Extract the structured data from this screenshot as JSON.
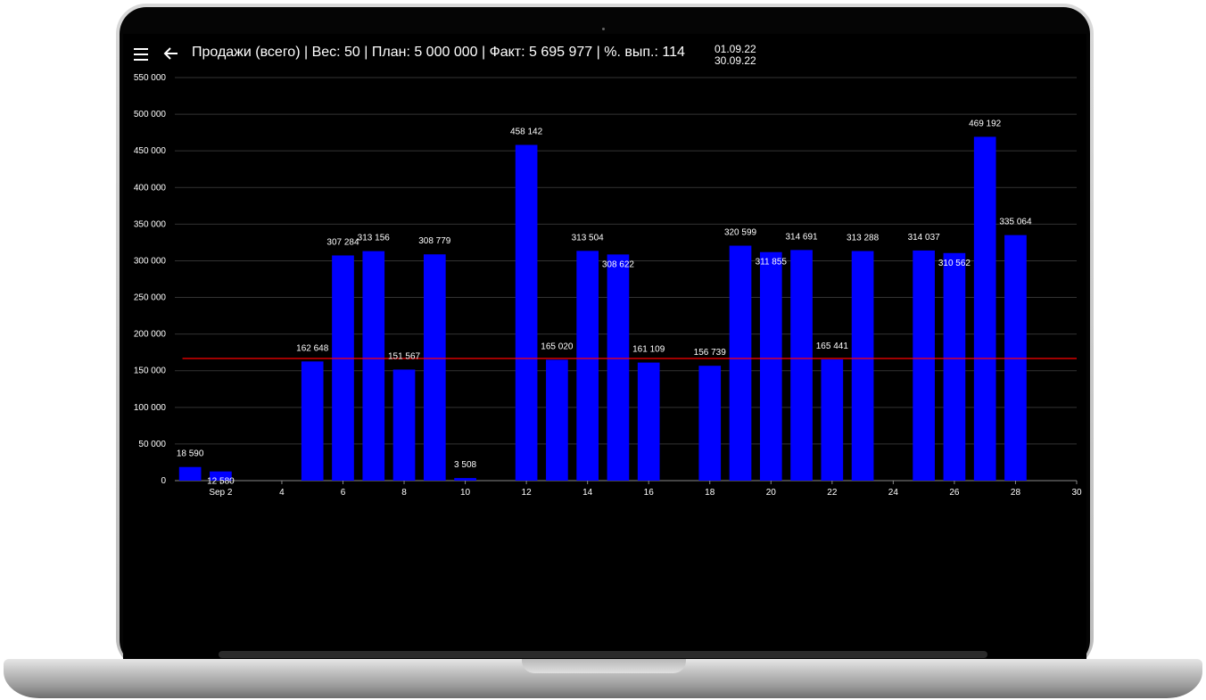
{
  "header": {
    "title": "Продажи (всего) | Вес: 50 | План: 5 000 000 | Факт: 5 695 977 | %. вып.: 114",
    "date_from": "01.09.22",
    "date_to": "30.09.22"
  },
  "icons": {
    "menu": "menu-icon",
    "back": "arrow-left-icon"
  },
  "colors": {
    "bar": "#0000ff",
    "plan_line": "#ff0000",
    "grid": "#333333",
    "background": "#000000",
    "text": "#ffffff"
  },
  "chart_data": {
    "type": "bar",
    "x": [
      1,
      2,
      5,
      6,
      7,
      8,
      9,
      10,
      12,
      13,
      14,
      15,
      16,
      18,
      19,
      20,
      21,
      22,
      23,
      25,
      26,
      27,
      28
    ],
    "values": [
      18590,
      12580,
      162648,
      307284,
      313156,
      151567,
      308779,
      3508,
      458142,
      165020,
      313504,
      308622,
      161109,
      156739,
      320599,
      311855,
      314691,
      165441,
      313288,
      314037,
      310562,
      469192,
      335064
    ],
    "value_labels": [
      "18 590",
      "12 580",
      "162 648",
      "307 284",
      "313 156",
      "151 567",
      "308 779",
      "3 508",
      "458 142",
      "165 020",
      "313 504",
      "308 622",
      "161 109",
      "156 739",
      "320 599",
      "311 855",
      "314 691",
      "165 441",
      "313 288",
      "314 037",
      "310 562",
      "469 192",
      "335 064"
    ],
    "ylim": [
      0,
      550000
    ],
    "xlim": [
      0.5,
      30
    ],
    "y_ticks": [
      0,
      50000,
      100000,
      150000,
      200000,
      250000,
      300000,
      350000,
      400000,
      450000,
      500000,
      550000
    ],
    "y_tick_labels": [
      "0",
      "50 000",
      "100 000",
      "150 000",
      "200 000",
      "250 000",
      "300 000",
      "350 000",
      "400 000",
      "450 000",
      "500 000",
      "550 000"
    ],
    "x_ticks": [
      2,
      4,
      6,
      8,
      10,
      12,
      14,
      16,
      18,
      20,
      22,
      24,
      26,
      28,
      30
    ],
    "x_tick_labels": [
      "Sep 2",
      "4",
      "6",
      "8",
      "10",
      "12",
      "14",
      "16",
      "18",
      "20",
      "22",
      "24",
      "26",
      "28",
      "30"
    ],
    "plan_line": 166667,
    "grid": true
  }
}
